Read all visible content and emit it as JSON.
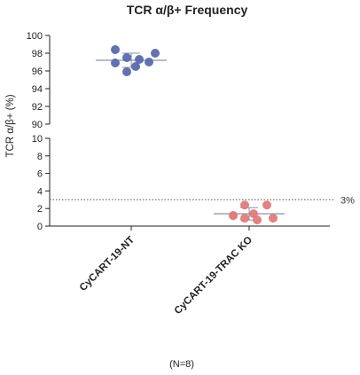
{
  "chart_data": {
    "type": "scatter",
    "title": "TCR α/β+ Frequency",
    "ylabel": "TCR α/β+ (%)",
    "categories": [
      "CyCART-19-NT",
      "CyCART-19-TRAC KO"
    ],
    "y_axis_segments": [
      {
        "ylim": [
          90,
          100
        ],
        "ticks": [
          "90",
          "92",
          "94",
          "96",
          "98",
          "100"
        ]
      },
      {
        "ylim": [
          0,
          10
        ],
        "ticks": [
          "0",
          "2",
          "4",
          "6",
          "8",
          "10"
        ]
      }
    ],
    "series": [
      {
        "category": "CyCART-19-NT",
        "color": "#5b68ad",
        "values": [
          98.4,
          97.5,
          97.3,
          98.0,
          96.9,
          96.5,
          95.9,
          97.0
        ],
        "mean": 97.2,
        "sd": 0.8
      },
      {
        "category": "CyCART-19-TRAC KO",
        "color": "#e07c7c",
        "values": [
          1.2,
          0.9,
          0.7,
          0.9,
          1.2,
          1.4,
          2.4,
          2.4
        ],
        "mean": 1.4,
        "sd": 0.7
      }
    ],
    "reference_line": {
      "value": 3,
      "label": "3%"
    },
    "annotation": "(N=8)"
  }
}
